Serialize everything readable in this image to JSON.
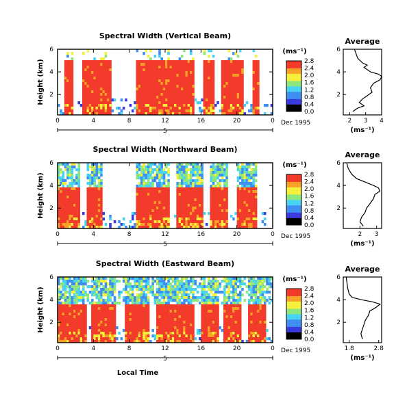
{
  "colorbar_ticks": [
    "0.0",
    "0.4",
    "0.8",
    "1.2",
    "1.6",
    "2.0",
    "2.4",
    "2.8"
  ],
  "colorscale": [
    "#000000",
    "#3a3adf",
    "#3f8ff0",
    "#49d3f3",
    "#8ee77d",
    "#f4f03c",
    "#f7a227",
    "#f23b2b"
  ],
  "x_ticks": [
    "0",
    "4",
    "8",
    "12",
    "16",
    "20",
    "0"
  ],
  "date_label_top": "5",
  "date_label_bottom": "Dec 1995",
  "ylabel": "Height (km)",
  "unit_label": "(ms⁻¹)",
  "avg_unit_label": "(ms⁻¹)",
  "xlabel_bottom": "Local Time",
  "chart_data": [
    {
      "type": "heatmap",
      "title": "Spectral Width (Vertical Beam)",
      "ylabel": "Height (km)",
      "y_ticks": [
        "6",
        "4",
        "2"
      ],
      "x_ticks": [
        "0",
        "4",
        "8",
        "12",
        "16",
        "20",
        "0"
      ],
      "colorbar": {
        "ticks": [
          "0.0",
          "0.4",
          "0.8",
          "1.2",
          "1.6",
          "2.0",
          "2.4",
          "2.8"
        ],
        "unit": "(ms⁻¹)"
      },
      "average": {
        "title": "Average",
        "x_ticks": [
          "2",
          "3",
          "4"
        ],
        "y_ticks": [
          "6",
          "4",
          "2"
        ],
        "xlabel": "(ms⁻¹)",
        "xlim": [
          1.6,
          4.0
        ],
        "ylim": [
          0.2,
          6.0
        ],
        "profile": [
          [
            2.3,
            6.0
          ],
          [
            2.4,
            5.6
          ],
          [
            2.5,
            5.2
          ],
          [
            2.8,
            4.8
          ],
          [
            3.1,
            4.6
          ],
          [
            2.9,
            4.4
          ],
          [
            3.3,
            4.0
          ],
          [
            3.8,
            3.8
          ],
          [
            4.0,
            3.6
          ],
          [
            3.9,
            3.3
          ],
          [
            3.5,
            3.0
          ],
          [
            3.3,
            2.6
          ],
          [
            3.4,
            2.2
          ],
          [
            3.1,
            1.9
          ],
          [
            2.8,
            1.6
          ],
          [
            2.6,
            1.3
          ],
          [
            2.9,
            1.0
          ],
          [
            2.5,
            0.8
          ],
          [
            2.2,
            0.5
          ]
        ]
      }
    },
    {
      "type": "heatmap",
      "title": "Spectral Width (Northward Beam)",
      "ylabel": "Height (km)",
      "y_ticks": [
        "6",
        "4",
        "2"
      ],
      "x_ticks": [
        "0",
        "4",
        "8",
        "12",
        "16",
        "20",
        "0"
      ],
      "colorbar": {
        "ticks": [
          "0.0",
          "0.4",
          "0.8",
          "1.2",
          "1.6",
          "2.0",
          "2.4",
          "2.8"
        ],
        "unit": "(ms⁻¹)"
      },
      "average": {
        "title": "Average",
        "x_ticks": [
          "2",
          "3"
        ],
        "y_ticks": [
          "6",
          "4",
          "2"
        ],
        "xlabel": "(ms⁻¹)",
        "xlim": [
          1.0,
          3.3
        ],
        "ylim": [
          0.2,
          6.0
        ],
        "profile": [
          [
            1.2,
            6.0
          ],
          [
            1.3,
            5.5
          ],
          [
            1.5,
            5.0
          ],
          [
            1.8,
            4.6
          ],
          [
            2.3,
            4.3
          ],
          [
            2.8,
            4.0
          ],
          [
            3.1,
            3.8
          ],
          [
            3.2,
            3.5
          ],
          [
            2.9,
            3.2
          ],
          [
            2.8,
            2.8
          ],
          [
            2.6,
            2.4
          ],
          [
            2.4,
            2.0
          ],
          [
            2.3,
            1.6
          ],
          [
            2.1,
            1.2
          ],
          [
            2.0,
            0.8
          ],
          [
            2.2,
            0.4
          ]
        ]
      }
    },
    {
      "type": "heatmap",
      "title": "Spectral Width (Eastward Beam)",
      "ylabel": "Height (km)",
      "y_ticks": [
        "6",
        "4",
        "2"
      ],
      "x_ticks": [
        "0",
        "4",
        "8",
        "12",
        "16",
        "20",
        "0"
      ],
      "colorbar": {
        "ticks": [
          "0.0",
          "0.4",
          "0.8",
          "1.2",
          "1.6",
          "2.0",
          "2.4",
          "2.8"
        ],
        "unit": "(ms⁻¹)"
      },
      "average": {
        "title": "Average",
        "x_ticks": [
          "1.8",
          "2.8"
        ],
        "y_ticks": [
          "6",
          "4",
          "2"
        ],
        "xlabel": "(ms⁻¹)",
        "xlim": [
          1.6,
          2.9
        ],
        "ylim": [
          0.2,
          6.0
        ],
        "profile": [
          [
            1.7,
            6.0
          ],
          [
            1.75,
            5.0
          ],
          [
            1.8,
            4.5
          ],
          [
            1.9,
            4.2
          ],
          [
            2.2,
            4.0
          ],
          [
            2.6,
            3.8
          ],
          [
            2.85,
            3.6
          ],
          [
            2.7,
            3.3
          ],
          [
            2.5,
            3.0
          ],
          [
            2.45,
            2.6
          ],
          [
            2.35,
            2.2
          ],
          [
            2.3,
            1.8
          ],
          [
            2.25,
            1.4
          ],
          [
            2.2,
            1.0
          ],
          [
            2.25,
            0.5
          ]
        ]
      }
    }
  ]
}
